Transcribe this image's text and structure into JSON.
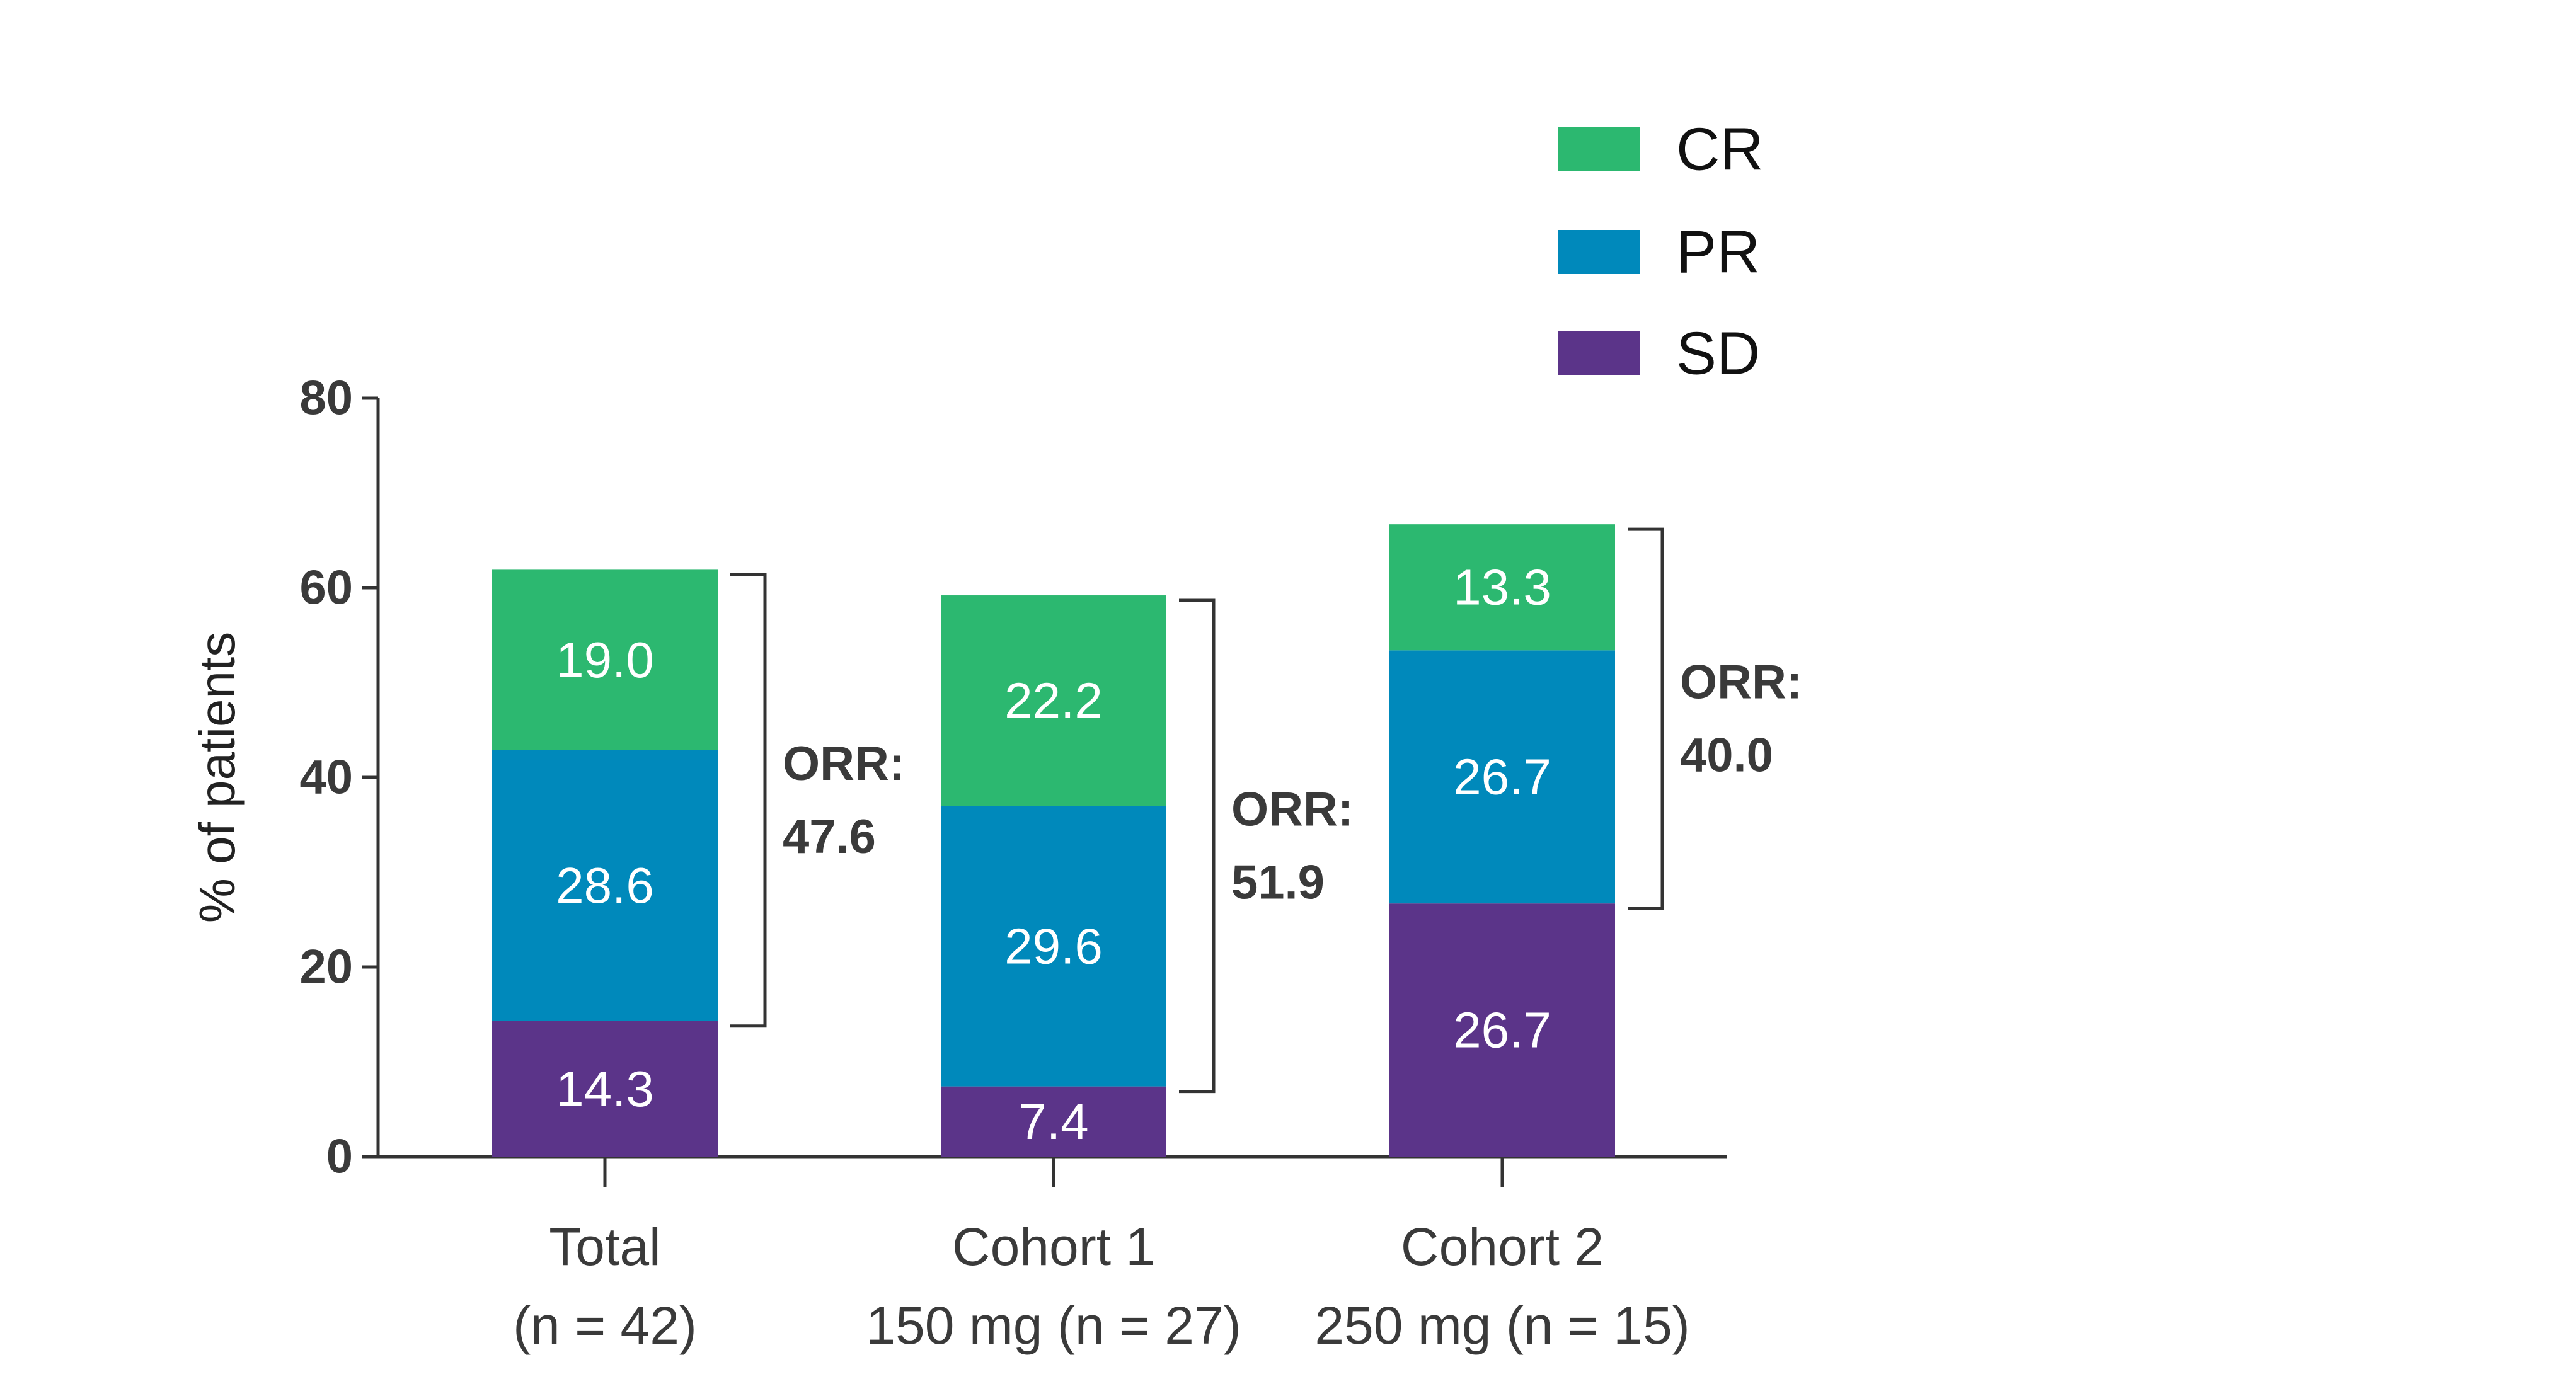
{
  "chart_data": {
    "type": "bar",
    "stacked": true,
    "ylabel": "% of patients",
    "xlabel": "",
    "ylim": [
      0,
      80
    ],
    "yticks": [
      0,
      20,
      40,
      60,
      80
    ],
    "categories": [
      {
        "line1": "Total",
        "line2": "(n = 42)"
      },
      {
        "line1": "Cohort 1",
        "line2": "150 mg (n = 27)"
      },
      {
        "line1": "Cohort 2",
        "line2": "250 mg (n = 15)"
      }
    ],
    "series": [
      {
        "name": "SD",
        "color": "#5b3489",
        "values": [
          14.3,
          7.4,
          26.7
        ],
        "labels": [
          "14.3",
          "7.4",
          "26.7"
        ]
      },
      {
        "name": "PR",
        "color": "#0089bb",
        "values": [
          28.6,
          29.6,
          26.7
        ],
        "labels": [
          "28.6",
          "29.6",
          "26.7"
        ]
      },
      {
        "name": "CR",
        "color": "#2cb870",
        "values": [
          19.0,
          22.2,
          13.3
        ],
        "labels": [
          "19.0",
          "22.2",
          "13.3"
        ]
      }
    ],
    "legend_order": [
      "CR",
      "PR",
      "SD"
    ],
    "legend_position": "top-right",
    "annotations": [
      {
        "title": "ORR:",
        "value": "47.6"
      },
      {
        "title": "ORR:",
        "value": "51.9"
      },
      {
        "title": "ORR:",
        "value": "40.0"
      }
    ],
    "grid": false
  }
}
